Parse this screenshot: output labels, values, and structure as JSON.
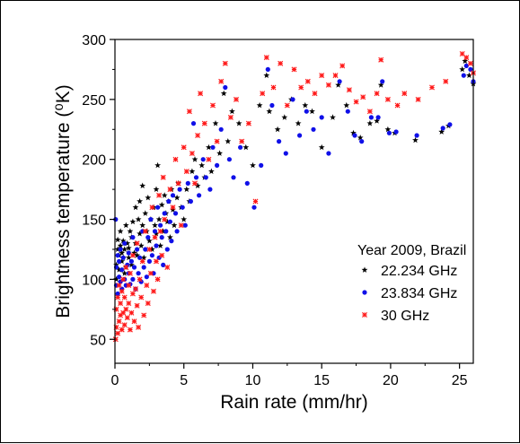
{
  "chart_data": {
    "type": "scatter",
    "title": "",
    "xlabel": "Rain rate (mm/hr)",
    "ylabel": "Brightness temperature (⁰K)",
    "xlim": [
      0,
      26
    ],
    "ylim": [
      30,
      300
    ],
    "x_ticks": [
      0,
      5,
      10,
      15,
      20,
      25
    ],
    "y_ticks": [
      50,
      100,
      150,
      200,
      250,
      300
    ],
    "grid": false,
    "legend": {
      "title": "Year 2009, Brazil",
      "placement": "inside-right"
    },
    "series": [
      {
        "name": "22.234 GHz",
        "marker": "star",
        "color": "#000000",
        "points": [
          [
            0.1,
            100
          ],
          [
            0.1,
            112
          ],
          [
            0.2,
            125
          ],
          [
            0.2,
            133
          ],
          [
            0.3,
            108
          ],
          [
            0.3,
            120
          ],
          [
            0.4,
            128
          ],
          [
            0.4,
            140
          ],
          [
            0.5,
            115
          ],
          [
            0.5,
            122
          ],
          [
            0.6,
            118
          ],
          [
            0.6,
            132
          ],
          [
            0.7,
            105
          ],
          [
            0.7,
            125
          ],
          [
            0.8,
            145
          ],
          [
            0.8,
            110
          ],
          [
            0.9,
            130
          ],
          [
            1.0,
            118
          ],
          [
            1.0,
            126
          ],
          [
            1.1,
            140
          ],
          [
            1.2,
            112
          ],
          [
            1.2,
            135
          ],
          [
            1.3,
            148
          ],
          [
            1.4,
            122
          ],
          [
            1.5,
            160
          ],
          [
            1.5,
            130
          ],
          [
            1.6,
            120
          ],
          [
            1.7,
            150
          ],
          [
            1.8,
            138
          ],
          [
            1.8,
            165
          ],
          [
            1.9,
            128
          ],
          [
            2.0,
            145
          ],
          [
            2.0,
            178
          ],
          [
            2.1,
            118
          ],
          [
            2.2,
            155
          ],
          [
            2.3,
            140
          ],
          [
            2.4,
            168
          ],
          [
            2.5,
            132
          ],
          [
            2.6,
            150
          ],
          [
            2.7,
            125
          ],
          [
            2.8,
            160
          ],
          [
            2.9,
            145
          ],
          [
            3.0,
            138
          ],
          [
            3.0,
            175
          ],
          [
            3.1,
            195
          ],
          [
            3.2,
            150
          ],
          [
            3.3,
            128
          ],
          [
            3.4,
            162
          ],
          [
            3.5,
            140
          ],
          [
            3.6,
            170
          ],
          [
            3.7,
            155
          ],
          [
            3.8,
            148
          ],
          [
            3.9,
            165
          ],
          [
            4.0,
            135
          ],
          [
            4.1,
            175
          ],
          [
            4.2,
            158
          ],
          [
            4.3,
            145
          ],
          [
            4.5,
            168
          ],
          [
            4.6,
            180
          ],
          [
            4.8,
            160
          ],
          [
            5.0,
            150
          ],
          [
            5.2,
            175
          ],
          [
            5.4,
            165
          ],
          [
            5.6,
            190
          ],
          [
            5.8,
            200
          ],
          [
            6.0,
            178
          ],
          [
            6.3,
            195
          ],
          [
            6.5,
            185
          ],
          [
            6.8,
            210
          ],
          [
            7.0,
            190
          ],
          [
            7.3,
            230
          ],
          [
            7.6,
            205
          ],
          [
            7.9,
            255
          ],
          [
            8.2,
            215
          ],
          [
            8.5,
            240
          ],
          [
            9.0,
            230
          ],
          [
            9.5,
            210
          ],
          [
            10.0,
            195
          ],
          [
            10.5,
            245
          ],
          [
            11.0,
            270
          ],
          [
            11.2,
            240
          ],
          [
            11.8,
            225
          ],
          [
            12.3,
            235
          ],
          [
            12.8,
            250
          ],
          [
            13.3,
            230
          ],
          [
            13.8,
            245
          ],
          [
            14.3,
            240
          ],
          [
            15.0,
            210
          ],
          [
            15.8,
            235
          ],
          [
            16.2,
            262
          ],
          [
            16.8,
            245
          ],
          [
            17.3,
            222
          ],
          [
            17.8,
            218
          ],
          [
            18.5,
            230
          ],
          [
            19.0,
            232
          ],
          [
            19.3,
            262
          ],
          [
            19.8,
            225
          ],
          [
            20.3,
            222
          ],
          [
            21.8,
            216
          ],
          [
            23.7,
            223
          ],
          [
            24.2,
            228
          ],
          [
            25.2,
            275
          ],
          [
            25.4,
            282
          ],
          [
            25.7,
            270
          ],
          [
            26.0,
            263
          ]
        ]
      },
      {
        "name": "23.834 GHz",
        "marker": "circle",
        "color": "#1010e8",
        "points": [
          [
            0.05,
            150
          ],
          [
            0.1,
            95
          ],
          [
            0.1,
            110
          ],
          [
            0.2,
            88
          ],
          [
            0.2,
            120
          ],
          [
            0.3,
            102
          ],
          [
            0.3,
            115
          ],
          [
            0.4,
            98
          ],
          [
            0.4,
            125
          ],
          [
            0.5,
            92
          ],
          [
            0.5,
            108
          ],
          [
            0.6,
            118
          ],
          [
            0.7,
            100
          ],
          [
            0.7,
            130
          ],
          [
            0.8,
            95
          ],
          [
            0.9,
            112
          ],
          [
            1.0,
            105
          ],
          [
            1.0,
            122
          ],
          [
            1.1,
            96
          ],
          [
            1.2,
            115
          ],
          [
            1.3,
            100
          ],
          [
            1.3,
            135
          ],
          [
            1.4,
            110
          ],
          [
            1.5,
            92
          ],
          [
            1.6,
            125
          ],
          [
            1.7,
            105
          ],
          [
            1.8,
            118
          ],
          [
            1.9,
            98
          ],
          [
            2.0,
            140
          ],
          [
            2.1,
            110
          ],
          [
            2.2,
            125
          ],
          [
            2.3,
            102
          ],
          [
            2.4,
            135
          ],
          [
            2.5,
            115
          ],
          [
            2.6,
            150
          ],
          [
            2.7,
            120
          ],
          [
            2.8,
            105
          ],
          [
            2.9,
            140
          ],
          [
            3.0,
            128
          ],
          [
            3.1,
            160
          ],
          [
            3.2,
            118
          ],
          [
            3.3,
            145
          ],
          [
            3.4,
            135
          ],
          [
            3.5,
            112
          ],
          [
            3.6,
            155
          ],
          [
            3.7,
            140
          ],
          [
            3.8,
            125
          ],
          [
            3.9,
            165
          ],
          [
            4.0,
            148
          ],
          [
            4.1,
            132
          ],
          [
            4.2,
            170
          ],
          [
            4.4,
            155
          ],
          [
            4.5,
            140
          ],
          [
            4.7,
            175
          ],
          [
            4.9,
            160
          ],
          [
            5.1,
            145
          ],
          [
            5.3,
            180
          ],
          [
            5.5,
            165
          ],
          [
            5.7,
            230
          ],
          [
            5.9,
            185
          ],
          [
            6.1,
            170
          ],
          [
            6.4,
            200
          ],
          [
            6.6,
            185
          ],
          [
            6.9,
            175
          ],
          [
            7.1,
            210
          ],
          [
            7.4,
            195
          ],
          [
            7.7,
            225
          ],
          [
            8.0,
            260
          ],
          [
            8.3,
            200
          ],
          [
            8.6,
            185
          ],
          [
            9.1,
            210
          ],
          [
            9.6,
            180
          ],
          [
            10.1,
            160
          ],
          [
            10.6,
            195
          ],
          [
            11.1,
            275
          ],
          [
            11.4,
            245
          ],
          [
            11.9,
            215
          ],
          [
            12.4,
            205
          ],
          [
            12.9,
            250
          ],
          [
            13.4,
            220
          ],
          [
            13.9,
            240
          ],
          [
            14.4,
            225
          ],
          [
            15.0,
            235
          ],
          [
            15.5,
            205
          ],
          [
            16.3,
            265
          ],
          [
            16.9,
            240
          ],
          [
            17.4,
            220
          ],
          [
            17.9,
            215
          ],
          [
            18.6,
            235
          ],
          [
            19.1,
            235
          ],
          [
            19.4,
            265
          ],
          [
            19.9,
            222
          ],
          [
            20.4,
            223
          ],
          [
            21.9,
            220
          ],
          [
            23.8,
            226
          ],
          [
            24.3,
            229
          ],
          [
            25.3,
            270
          ],
          [
            25.5,
            278
          ],
          [
            25.8,
            275
          ],
          [
            26.0,
            265
          ]
        ]
      },
      {
        "name": "30 GHz",
        "marker": "x-star",
        "color": "#ff1a1a",
        "points": [
          [
            0.05,
            50
          ],
          [
            0.1,
            60
          ],
          [
            0.1,
            75
          ],
          [
            0.2,
            55
          ],
          [
            0.2,
            85
          ],
          [
            0.3,
            65
          ],
          [
            0.3,
            95
          ],
          [
            0.4,
            70
          ],
          [
            0.4,
            80
          ],
          [
            0.5,
            58
          ],
          [
            0.5,
            90
          ],
          [
            0.6,
            72
          ],
          [
            0.6,
            100
          ],
          [
            0.7,
            62
          ],
          [
            0.7,
            85
          ],
          [
            0.8,
            75
          ],
          [
            0.8,
            110
          ],
          [
            0.9,
            68
          ],
          [
            1.0,
            80
          ],
          [
            1.0,
            95
          ],
          [
            1.1,
            58
          ],
          [
            1.1,
            105
          ],
          [
            1.2,
            72
          ],
          [
            1.3,
            88
          ],
          [
            1.3,
            120
          ],
          [
            1.4,
            65
          ],
          [
            1.5,
            92
          ],
          [
            1.6,
            78
          ],
          [
            1.6,
            130
          ],
          [
            1.7,
            60
          ],
          [
            1.8,
            100
          ],
          [
            1.9,
            85
          ],
          [
            2.0,
            115
          ],
          [
            2.1,
            70
          ],
          [
            2.2,
            140
          ],
          [
            2.3,
            95
          ],
          [
            2.4,
            80
          ],
          [
            2.5,
            125
          ],
          [
            2.6,
            105
          ],
          [
            2.7,
            160
          ],
          [
            2.8,
            90
          ],
          [
            2.9,
            135
          ],
          [
            3.0,
            115
          ],
          [
            3.1,
            100
          ],
          [
            3.2,
            170
          ],
          [
            3.3,
            140
          ],
          [
            3.4,
            120
          ],
          [
            3.5,
            185
          ],
          [
            3.6,
            150
          ],
          [
            3.8,
            110
          ],
          [
            4.0,
            175
          ],
          [
            4.2,
            160
          ],
          [
            4.4,
            200
          ],
          [
            4.6,
            180
          ],
          [
            4.8,
            145
          ],
          [
            5.0,
            210
          ],
          [
            5.2,
            190
          ],
          [
            5.4,
            240
          ],
          [
            5.6,
            205
          ],
          [
            5.8,
            180
          ],
          [
            6.0,
            220
          ],
          [
            6.2,
            255
          ],
          [
            6.5,
            230
          ],
          [
            6.8,
            200
          ],
          [
            7.1,
            245
          ],
          [
            7.4,
            215
          ],
          [
            7.7,
            265
          ],
          [
            8.0,
            280
          ],
          [
            8.4,
            235
          ],
          [
            8.8,
            250
          ],
          [
            9.2,
            215
          ],
          [
            9.7,
            230
          ],
          [
            10.2,
            165
          ],
          [
            10.7,
            255
          ],
          [
            11.0,
            285
          ],
          [
            11.5,
            260
          ],
          [
            12.0,
            280
          ],
          [
            12.5,
            245
          ],
          [
            13.0,
            275
          ],
          [
            13.5,
            260
          ],
          [
            14.0,
            265
          ],
          [
            14.5,
            255
          ],
          [
            15.0,
            270
          ],
          [
            15.5,
            262
          ],
          [
            16.0,
            270
          ],
          [
            16.5,
            278
          ],
          [
            17.0,
            258
          ],
          [
            17.5,
            248
          ],
          [
            18.0,
            252
          ],
          [
            18.5,
            240
          ],
          [
            19.0,
            255
          ],
          [
            19.3,
            283
          ],
          [
            19.8,
            250
          ],
          [
            20.5,
            245
          ],
          [
            21.0,
            255
          ],
          [
            22.0,
            250
          ],
          [
            23.0,
            260
          ],
          [
            24.0,
            265
          ],
          [
            25.2,
            288
          ],
          [
            25.5,
            285
          ],
          [
            25.8,
            280
          ],
          [
            26.0,
            272
          ]
        ]
      }
    ]
  }
}
